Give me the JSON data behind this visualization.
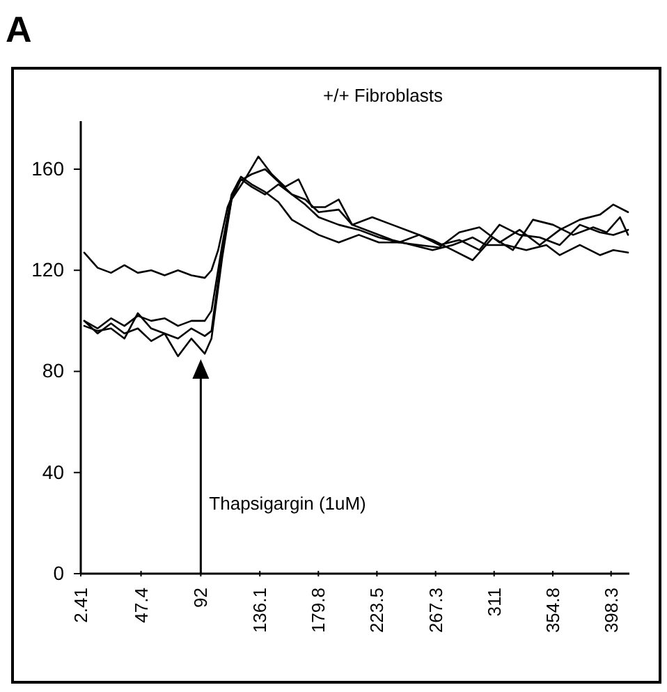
{
  "chart_data": {
    "type": "line",
    "title": "+/+ Fibroblasts",
    "xlim": [
      2.41,
      412
    ],
    "xticks": [
      2.41,
      47.4,
      92,
      136.1,
      179.8,
      223.5,
      267.3,
      311,
      354.8,
      398.3
    ],
    "ylim": [
      0,
      179
    ],
    "yticks": [
      0,
      40,
      80,
      120,
      160
    ],
    "grid": false,
    "annotations": [
      "A"
    ],
    "ref_lines": [
      {
        "axis": "x",
        "value": 92,
        "label": "Thapsigargin (1uM)"
      }
    ],
    "series": [
      {
        "color": "#000000",
        "x": [
          5,
          15,
          25,
          35,
          45,
          55,
          65,
          75,
          85,
          95,
          100,
          105,
          112,
          120,
          130,
          140,
          150,
          160,
          170,
          180,
          195,
          205,
          220,
          235,
          250,
          265,
          280,
          295,
          305,
          320,
          335,
          350,
          360,
          375,
          390,
          400,
          411
        ],
        "values": [
          127,
          121,
          119,
          122,
          119,
          120,
          118,
          120,
          118,
          117,
          120,
          128,
          145,
          155,
          158,
          160,
          155,
          150,
          148,
          143,
          144,
          138,
          135,
          132,
          130,
          128,
          130,
          133,
          130,
          130,
          128,
          130,
          126,
          130,
          126,
          128,
          127
        ]
      },
      {
        "color": "#000000",
        "x": [
          5,
          15,
          25,
          35,
          45,
          55,
          65,
          75,
          85,
          95,
          100,
          108,
          115,
          122,
          130,
          140,
          150,
          160,
          170,
          180,
          195,
          210,
          225,
          240,
          255,
          270,
          285,
          300,
          315,
          330,
          345,
          360,
          375,
          390,
          400,
          411
        ],
        "values": [
          100,
          97,
          101,
          98,
          102,
          100,
          101,
          98,
          100,
          100,
          104,
          130,
          150,
          157,
          154,
          151,
          147,
          140,
          137,
          134,
          131,
          134,
          131,
          131,
          130,
          129,
          135,
          137,
          131,
          136,
          130,
          136,
          140,
          142,
          146,
          143
        ]
      },
      {
        "color": "#000000",
        "x": [
          5,
          15,
          25,
          35,
          45,
          55,
          65,
          75,
          85,
          95,
          100,
          108,
          115,
          125,
          135,
          145,
          155,
          165,
          175,
          185,
          195,
          205,
          220,
          235,
          250,
          265,
          280,
          295,
          310,
          325,
          340,
          355,
          370,
          385,
          395,
          405,
          411
        ],
        "values": [
          98,
          96,
          97,
          93,
          103,
          97,
          95,
          93,
          97,
          94,
          96,
          128,
          148,
          156,
          165,
          158,
          153,
          156,
          145,
          145,
          148,
          138,
          141,
          138,
          135,
          132,
          128,
          124,
          133,
          128,
          140,
          138,
          134,
          137,
          135,
          141,
          134
        ]
      },
      {
        "color": "#000000",
        "x": [
          5,
          15,
          25,
          35,
          45,
          55,
          65,
          75,
          85,
          95,
          100,
          108,
          115,
          122,
          130,
          140,
          150,
          160,
          170,
          180,
          195,
          210,
          225,
          240,
          255,
          270,
          285,
          300,
          315,
          330,
          345,
          360,
          375,
          390,
          400,
          411
        ],
        "values": [
          100,
          95,
          99,
          95,
          97,
          92,
          95,
          86,
          93,
          87,
          93,
          125,
          148,
          156,
          153,
          150,
          154,
          150,
          146,
          141,
          138,
          136,
          133,
          131,
          134,
          130,
          132,
          128,
          138,
          134,
          133,
          130,
          138,
          135,
          134,
          136
        ]
      }
    ]
  }
}
